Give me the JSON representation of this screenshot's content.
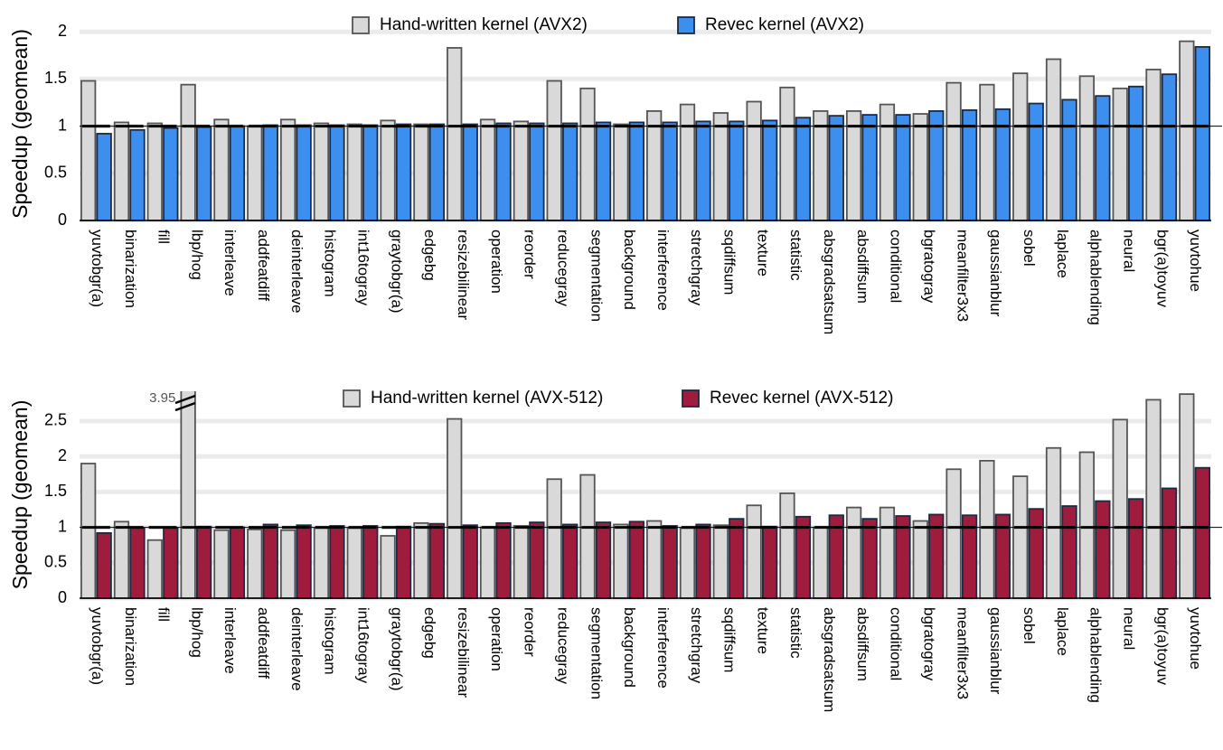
{
  "chart_data": [
    {
      "type": "bar",
      "ylabel": "Speedup (geomean)",
      "legend": "top",
      "grid": true,
      "reference_line": 1,
      "categories": [
        "yuvtobgr(a)",
        "binarization",
        "fill",
        "lbp/hog",
        "interleave",
        "addfeatdiff",
        "deinterleave",
        "histogram",
        "int16togray",
        "graytobgr(a)",
        "edgebg",
        "resizebilinear",
        "operation",
        "reorder",
        "reducegray",
        "segmentation",
        "background",
        "interference",
        "stretchgray",
        "sqdiffsum",
        "texture",
        "statistic",
        "absgradsatsum",
        "absdiffsum",
        "conditional",
        "bgratogray",
        "meanfilter3x3",
        "gaussianblur",
        "sobel",
        "laplace",
        "alphablending",
        "neural",
        "bgr(a)toyuv",
        "yuvtohue"
      ],
      "ylim": [
        0,
        2.05
      ],
      "yticks": [
        0,
        0.5,
        1,
        1.5,
        2
      ],
      "series": [
        {
          "name": "Hand-written kernel (AVX2)",
          "color": "#d9d9d9",
          "values": [
            1.48,
            1.04,
            1.03,
            1.44,
            1.07,
            1.0,
            1.07,
            1.03,
            1.02,
            1.06,
            1.02,
            1.83,
            1.07,
            1.05,
            1.48,
            1.4,
            1.02,
            1.16,
            1.23,
            1.14,
            1.26,
            1.41,
            1.16,
            1.16,
            1.23,
            1.13,
            1.46,
            1.44,
            1.56,
            1.71,
            1.53,
            1.4,
            1.6,
            1.9
          ]
        },
        {
          "name": "Revec kernel (AVX2)",
          "color": "#3d8fef",
          "values": [
            0.92,
            0.96,
            0.98,
            0.99,
            1.0,
            1.01,
            1.01,
            1.01,
            1.01,
            1.02,
            1.02,
            1.02,
            1.03,
            1.03,
            1.03,
            1.04,
            1.04,
            1.04,
            1.05,
            1.05,
            1.06,
            1.09,
            1.11,
            1.12,
            1.12,
            1.16,
            1.17,
            1.18,
            1.24,
            1.28,
            1.32,
            1.42,
            1.55,
            1.84
          ]
        }
      ]
    },
    {
      "type": "bar",
      "ylabel": "Speedup (geomean)",
      "legend": "top",
      "grid": true,
      "reference_line": 1,
      "categories": [
        "yuvtobgr(a)",
        "binarization",
        "fill",
        "lbp/hog",
        "interleave",
        "addfeatdiff",
        "deinterleave",
        "histogram",
        "int16togray",
        "graytobgr(a)",
        "edgebg",
        "resizebilinear",
        "operation",
        "reorder",
        "reducegray",
        "segmentation",
        "background",
        "interference",
        "stretchgray",
        "sqdiffsum",
        "texture",
        "statistic",
        "absgradsatsum",
        "absdiffsum",
        "conditional",
        "bgratogray",
        "meanfilter3x3",
        "gaussianblur",
        "sobel",
        "laplace",
        "alphablending",
        "neural",
        "bgr(a)toyuv",
        "yuvtohue"
      ],
      "ylim": [
        0,
        2.92
      ],
      "yticks": [
        0,
        0.5,
        1,
        1.5,
        2,
        2.5
      ],
      "series": [
        {
          "name": "Hand-written kernel (AVX-512)",
          "color": "#d9d9d9",
          "values": [
            1.9,
            1.08,
            0.82,
            3.95,
            0.96,
            0.97,
            0.96,
            0.99,
            0.99,
            0.88,
            1.06,
            2.53,
            1.0,
            1.02,
            1.68,
            1.74,
            1.04,
            1.09,
            0.99,
            1.03,
            1.31,
            1.48,
            1.0,
            1.28,
            1.28,
            1.09,
            1.82,
            1.94,
            1.72,
            2.12,
            2.06,
            2.52,
            2.8,
            2.88
          ],
          "value_labels": [
            null,
            null,
            null,
            "3.95",
            null,
            null,
            null,
            null,
            null,
            null,
            null,
            null,
            null,
            null,
            null,
            null,
            null,
            null,
            null,
            null,
            null,
            null,
            null,
            null,
            null,
            null,
            null,
            null,
            null,
            null,
            null,
            null,
            null,
            null
          ]
        },
        {
          "name": "Revec kernel (AVX-512)",
          "color": "#a01c3c",
          "values": [
            0.92,
            0.99,
            0.99,
            1.01,
            1.0,
            1.04,
            1.03,
            1.02,
            1.02,
            1.01,
            1.05,
            1.03,
            1.06,
            1.07,
            1.04,
            1.07,
            1.08,
            1.02,
            1.04,
            1.12,
            1.01,
            1.15,
            1.17,
            1.12,
            1.16,
            1.18,
            1.17,
            1.18,
            1.26,
            1.3,
            1.37,
            1.4,
            1.55,
            1.84
          ]
        }
      ]
    }
  ]
}
